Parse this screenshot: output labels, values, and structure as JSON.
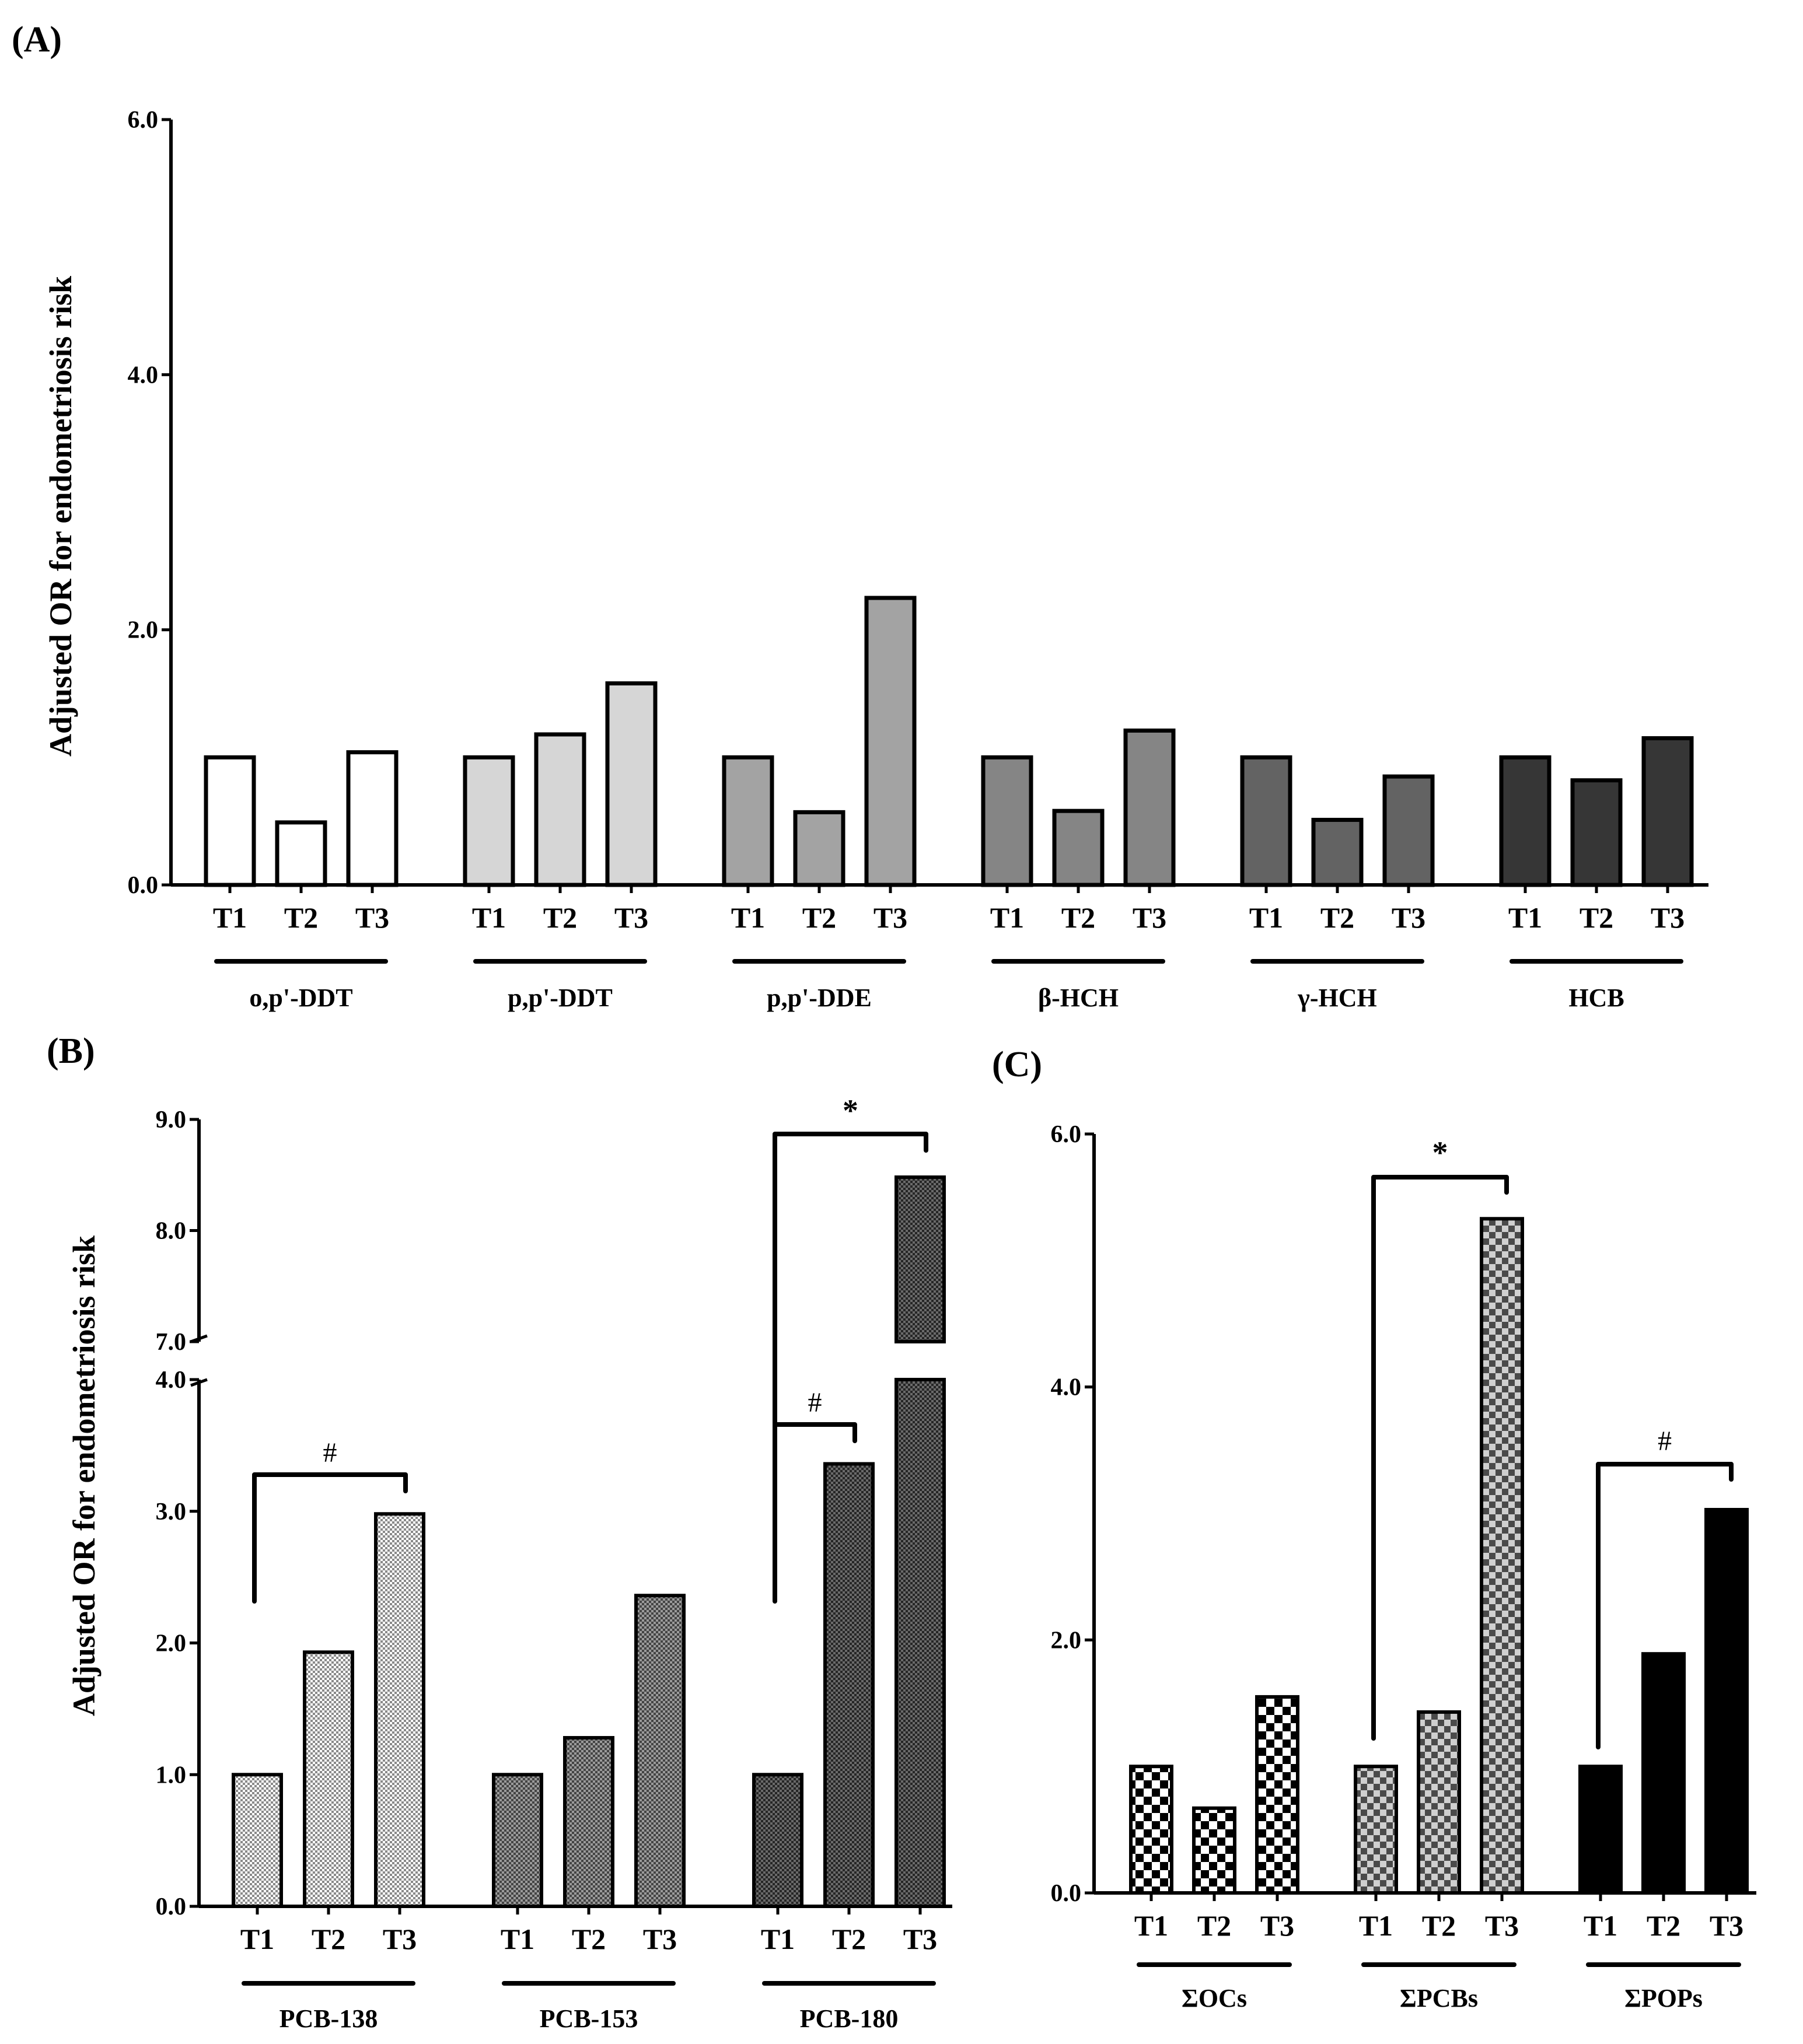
{
  "chart_data": [
    {
      "panel": "(A)",
      "type": "bar",
      "ylabel": "Adjusted OR for endometriosis risk",
      "ylim": [
        0,
        6
      ],
      "yticks": [
        "0.0",
        "2.0",
        "4.0",
        "6.0"
      ],
      "tertiles": [
        "T1",
        "T2",
        "T3"
      ],
      "groups": [
        {
          "name": "o,p'-DDT",
          "values": [
            1.0,
            0.49,
            1.04
          ],
          "color": "#ffffff"
        },
        {
          "name": "p,p'-DDT",
          "values": [
            1.0,
            1.18,
            1.58
          ],
          "color": "#d6d6d6"
        },
        {
          "name": "p,p'-DDE",
          "values": [
            1.0,
            0.57,
            2.25
          ],
          "color": "#a3a3a3"
        },
        {
          "name": "β-HCH",
          "values": [
            1.0,
            0.58,
            1.21
          ],
          "color": "#858585"
        },
        {
          "name": "γ-HCH",
          "values": [
            1.0,
            0.51,
            0.85
          ],
          "color": "#636363"
        },
        {
          "name": "HCB",
          "values": [
            1.0,
            0.82,
            1.15
          ],
          "color": "#363636"
        }
      ]
    },
    {
      "panel": "(B)",
      "type": "bar",
      "ylabel": "Adjusted OR for endometriosis risk",
      "ylim": [
        0,
        9
      ],
      "axis_break": [
        4,
        7
      ],
      "yticks": [
        "0.0",
        "1.0",
        "2.0",
        "3.0",
        "4.0",
        "7.0",
        "8.0",
        "9.0"
      ],
      "tertiles": [
        "T1",
        "T2",
        "T3"
      ],
      "groups": [
        {
          "name": "PCB-138",
          "values": [
            1.0,
            1.93,
            2.98
          ],
          "pattern": "light"
        },
        {
          "name": "PCB-153",
          "values": [
            1.0,
            1.28,
            2.36
          ],
          "pattern": "medium"
        },
        {
          "name": "PCB-180",
          "values": [
            1.0,
            3.36,
            8.48
          ],
          "pattern": "dark"
        }
      ],
      "annotations": [
        {
          "group": "PCB-138",
          "from": "T1",
          "to": "T3",
          "symbol": "#"
        },
        {
          "group": "PCB-180",
          "from": "T1",
          "to": "T2",
          "symbol": "#"
        },
        {
          "group": "PCB-180",
          "from": "T1",
          "to": "T3",
          "symbol": "*"
        }
      ]
    },
    {
      "panel": "(C)",
      "type": "bar",
      "ylim": [
        0,
        6
      ],
      "yticks": [
        "0.0",
        "2.0",
        "4.0",
        "6.0"
      ],
      "tertiles": [
        "T1",
        "T2",
        "T3"
      ],
      "groups": [
        {
          "name": "ΣOCs",
          "values": [
            1.0,
            0.67,
            1.55
          ],
          "pattern": "checker-bw"
        },
        {
          "name": "ΣPCBs",
          "values": [
            1.0,
            1.43,
            5.33
          ],
          "pattern": "checker-gray"
        },
        {
          "name": "ΣPOPs",
          "values": [
            1.0,
            1.89,
            3.03
          ],
          "pattern": "solid-black"
        }
      ],
      "annotations": [
        {
          "group": "ΣPCBs",
          "from": "T1",
          "to": "T3",
          "symbol": "*"
        },
        {
          "group": "ΣPOPs",
          "from": "T1",
          "to": "T3",
          "symbol": "#"
        }
      ]
    }
  ]
}
